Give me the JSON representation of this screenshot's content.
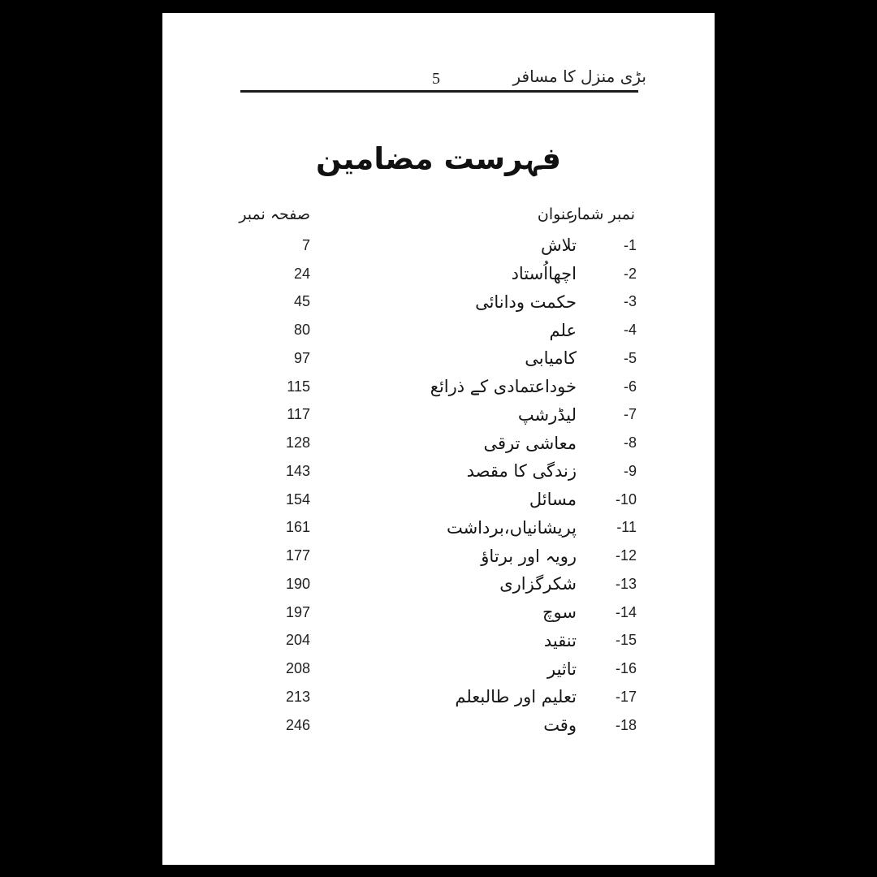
{
  "page_header": {
    "book_title": "بڑی منزل کا مسافر",
    "page_number": "5"
  },
  "toc": {
    "title": "فہرست مضامین",
    "columns": {
      "page": "صفحہ نمبر",
      "heading": "عنوان",
      "serial": "نمبر شمار"
    },
    "rows": [
      {
        "serial": "-1",
        "title": "تلاش",
        "page": "7"
      },
      {
        "serial": "-2",
        "title": "اچھااُستاد",
        "page": "24"
      },
      {
        "serial": "-3",
        "title": "حکمت ودانائی",
        "page": "45"
      },
      {
        "serial": "-4",
        "title": "علم",
        "page": "80"
      },
      {
        "serial": "-5",
        "title": "کامیابی",
        "page": "97"
      },
      {
        "serial": "-6",
        "title": "خوداعتمادی کے ذرائع",
        "page": "115"
      },
      {
        "serial": "-7",
        "title": "لیڈرشپ",
        "page": "117"
      },
      {
        "serial": "-8",
        "title": "معاشی ترقی",
        "page": "128"
      },
      {
        "serial": "-9",
        "title": "زندگی کا مقصد",
        "page": "143"
      },
      {
        "serial": "-10",
        "title": "مسائل",
        "page": "154"
      },
      {
        "serial": "-11",
        "title": "پریشانیاں،برداشت",
        "page": "161"
      },
      {
        "serial": "-12",
        "title": "رویہ اور برتاؤ",
        "page": "177"
      },
      {
        "serial": "-13",
        "title": "شکرگزاری",
        "page": "190"
      },
      {
        "serial": "-14",
        "title": "سوچ",
        "page": "197"
      },
      {
        "serial": "-15",
        "title": "تنقید",
        "page": "204"
      },
      {
        "serial": "-16",
        "title": "تاثیر",
        "page": "208"
      },
      {
        "serial": "-17",
        "title": "تعلیم اور طالبعلم",
        "page": "213"
      },
      {
        "serial": "-18",
        "title": "وقت",
        "page": "246"
      }
    ]
  },
  "colors": {
    "background": "#000000",
    "paper": "#ffffff",
    "ink": "#1b1b1b"
  }
}
